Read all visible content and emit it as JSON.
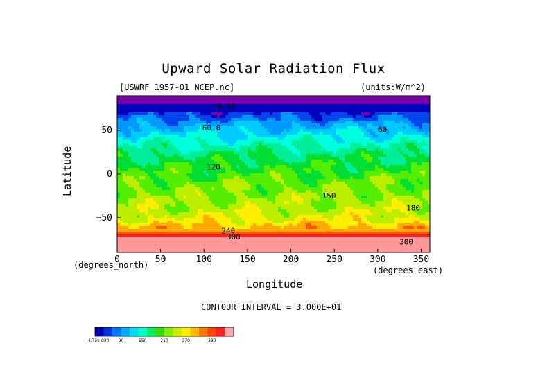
{
  "chart_data": {
    "type": "heatmap",
    "title": "Upward Solar Radiation Flux",
    "file_label": "[USWRF_1957-01_NCEP.nc]",
    "units_label": "(units:W/m^2)",
    "xlabel": "Longitude",
    "ylabel": "Latitude",
    "x_unit": "(degrees_east)",
    "y_unit": "(degrees_north)",
    "xlim": [
      0,
      360
    ],
    "ylim": [
      -90,
      90
    ],
    "x_ticks": [
      0,
      50,
      100,
      150,
      200,
      250,
      300,
      350
    ],
    "y_ticks": [
      50,
      0,
      -50
    ],
    "x_tick_labels": [
      "0",
      "50",
      "100",
      "150",
      "200",
      "250",
      "300",
      "350"
    ],
    "y_tick_labels": [
      "50",
      "0",
      "−50"
    ],
    "contour_interval_text": "CONTOUR INTERVAL = 3.000E+01",
    "contour_labels": [
      {
        "text": "0.00",
        "lon": 115,
        "lat": 75
      },
      {
        "text": "60.0",
        "lon": 98,
        "lat": 50
      },
      {
        "text": "60",
        "lon": 300,
        "lat": 48
      },
      {
        "text": "120",
        "lon": 103,
        "lat": 5
      },
      {
        "text": "150",
        "lon": 236,
        "lat": -28
      },
      {
        "text": "180",
        "lon": 333,
        "lat": -42
      },
      {
        "text": "240",
        "lon": 120,
        "lat": -68
      },
      {
        "text": "300",
        "lon": 126,
        "lat": -75
      },
      {
        "text": "300",
        "lon": 325,
        "lat": -81
      }
    ],
    "lat_bands": [
      {
        "lat": 82,
        "value": 0
      },
      {
        "lat": 76,
        "value": 5
      },
      {
        "lat": 67,
        "value": 25
      },
      {
        "lat": 57,
        "value": 55
      },
      {
        "lat": 45,
        "value": 80
      },
      {
        "lat": 33,
        "value": 105
      },
      {
        "lat": 22,
        "value": 125
      },
      {
        "lat": 10,
        "value": 140
      },
      {
        "lat": 0,
        "value": 150
      },
      {
        "lat": -12,
        "value": 162
      },
      {
        "lat": -24,
        "value": 170
      },
      {
        "lat": -36,
        "value": 178
      },
      {
        "lat": -48,
        "value": 188
      },
      {
        "lat": -56,
        "value": 205
      },
      {
        "lat": -62,
        "value": 222
      },
      {
        "lat": -68,
        "value": 250
      },
      {
        "lat": -73,
        "value": 285
      },
      {
        "lat": -80,
        "value": 312
      },
      {
        "lat": -87,
        "value": 318
      }
    ],
    "colorbar": {
      "levels_text": [
        "-4.73e-030",
        "90",
        "150",
        "210",
        "270",
        "330"
      ],
      "colors": [
        "#0000aa",
        "#0033dd",
        "#0077ff",
        "#00aaff",
        "#00ddee",
        "#00ffcc",
        "#00ee66",
        "#33dd00",
        "#88ee00",
        "#ccee00",
        "#ffee00",
        "#ffbb00",
        "#ff7700",
        "#ff4400",
        "#ff2222",
        "#ffaaaa"
      ]
    }
  }
}
